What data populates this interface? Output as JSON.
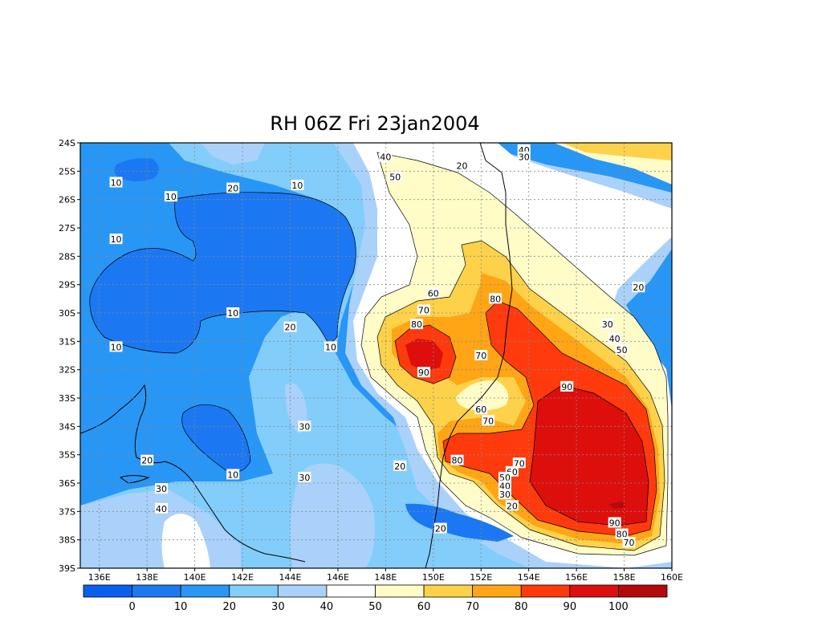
{
  "title": "RH 06Z Fri 23jan2004",
  "map": {
    "lat_labels": [
      "24S",
      "25S",
      "26S",
      "27S",
      "28S",
      "29S",
      "30S",
      "31S",
      "32S",
      "33S",
      "34S",
      "35S",
      "36S",
      "37S",
      "38S",
      "39S"
    ],
    "lon_labels": [
      "136E",
      "138E",
      "140E",
      "142E",
      "144E",
      "146E",
      "148E",
      "150E",
      "152E",
      "154E",
      "156E",
      "158E",
      "160E"
    ],
    "contour_labels": [
      {
        "t": "10",
        "lon": 136.7,
        "lat": 25.4
      },
      {
        "t": "10",
        "lon": 139.0,
        "lat": 25.9
      },
      {
        "t": "20",
        "lon": 141.6,
        "lat": 25.6
      },
      {
        "t": "10",
        "lon": 144.3,
        "lat": 25.5
      },
      {
        "t": "40",
        "lon": 148.0,
        "lat": 24.5
      },
      {
        "t": "50",
        "lon": 148.4,
        "lat": 25.2
      },
      {
        "t": "20",
        "lon": 151.2,
        "lat": 24.8
      },
      {
        "t": "40",
        "lon": 153.8,
        "lat": 24.25
      },
      {
        "t": "30",
        "lon": 153.8,
        "lat": 24.5
      },
      {
        "t": "10",
        "lon": 136.7,
        "lat": 27.4
      },
      {
        "t": "10",
        "lon": 141.6,
        "lat": 30.0
      },
      {
        "t": "10",
        "lon": 136.7,
        "lat": 31.2
      },
      {
        "t": "20",
        "lon": 144.0,
        "lat": 30.5
      },
      {
        "t": "10",
        "lon": 145.7,
        "lat": 31.2
      },
      {
        "t": "60",
        "lon": 150.0,
        "lat": 29.3
      },
      {
        "t": "70",
        "lon": 149.6,
        "lat": 29.9
      },
      {
        "t": "80",
        "lon": 149.3,
        "lat": 30.4
      },
      {
        "t": "90",
        "lon": 149.6,
        "lat": 32.1
      },
      {
        "t": "80",
        "lon": 152.6,
        "lat": 29.5
      },
      {
        "t": "70",
        "lon": 152.0,
        "lat": 31.5
      },
      {
        "t": "60",
        "lon": 152.0,
        "lat": 33.4
      },
      {
        "t": "70",
        "lon": 152.3,
        "lat": 33.8
      },
      {
        "t": "90",
        "lon": 155.6,
        "lat": 32.6
      },
      {
        "t": "20",
        "lon": 158.6,
        "lat": 29.1
      },
      {
        "t": "30",
        "lon": 157.3,
        "lat": 30.4
      },
      {
        "t": "40",
        "lon": 157.6,
        "lat": 30.9
      },
      {
        "t": "50",
        "lon": 157.9,
        "lat": 31.3
      },
      {
        "t": "30",
        "lon": 144.6,
        "lat": 34.0
      },
      {
        "t": "20",
        "lon": 138.0,
        "lat": 35.2
      },
      {
        "t": "10",
        "lon": 141.6,
        "lat": 35.7
      },
      {
        "t": "30",
        "lon": 144.6,
        "lat": 35.8
      },
      {
        "t": "30",
        "lon": 138.6,
        "lat": 36.2
      },
      {
        "t": "40",
        "lon": 138.6,
        "lat": 36.9
      },
      {
        "t": "20",
        "lon": 148.6,
        "lat": 35.4
      },
      {
        "t": "80",
        "lon": 151.0,
        "lat": 35.2
      },
      {
        "t": "70",
        "lon": 153.6,
        "lat": 35.3
      },
      {
        "t": "60",
        "lon": 153.3,
        "lat": 35.6
      },
      {
        "t": "50",
        "lon": 153.0,
        "lat": 35.8
      },
      {
        "t": "40",
        "lon": 153.0,
        "lat": 36.1
      },
      {
        "t": "30",
        "lon": 153.0,
        "lat": 36.4
      },
      {
        "t": "20",
        "lon": 153.3,
        "lat": 36.8
      },
      {
        "t": "20",
        "lon": 150.3,
        "lat": 37.6
      },
      {
        "t": "90",
        "lon": 157.6,
        "lat": 37.4
      },
      {
        "t": "80",
        "lon": 157.9,
        "lat": 37.8
      },
      {
        "t": "70",
        "lon": 158.2,
        "lat": 38.1
      }
    ]
  },
  "colorbar": {
    "labels": [
      "0",
      "10",
      "20",
      "30",
      "40",
      "50",
      "60",
      "70",
      "80",
      "90",
      "100"
    ],
    "colors": [
      "#0a5ff0",
      "#1b78f2",
      "#2896f5",
      "#83cdfb",
      "#a9d1fa",
      "#ffffff",
      "#fffcc8",
      "#fdd24a",
      "#ffa516",
      "#ff3a0c",
      "#dc0f0d",
      "#b40b0a"
    ]
  }
}
